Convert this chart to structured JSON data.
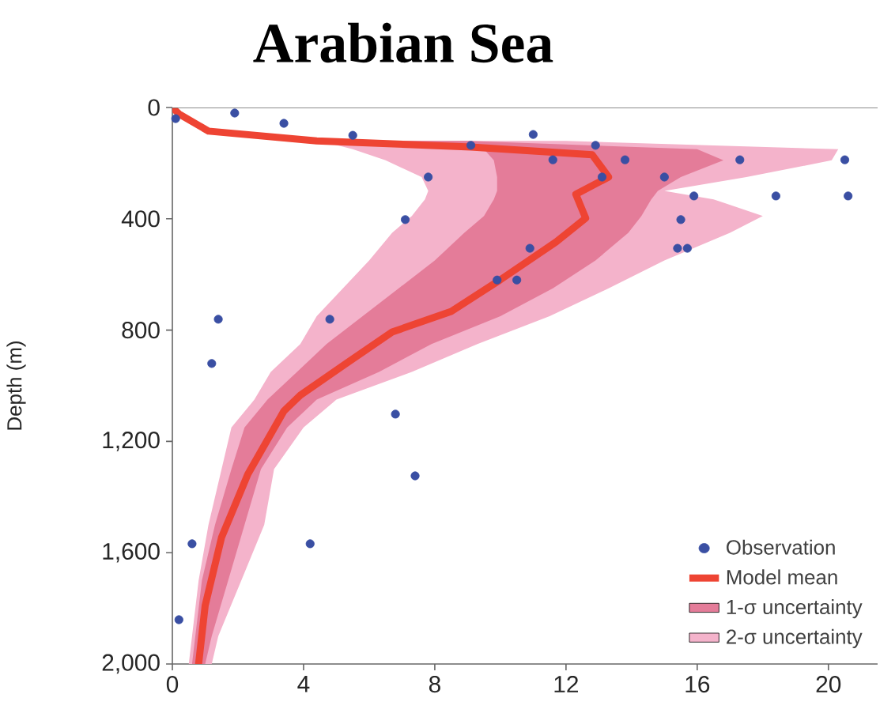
{
  "chart_data": {
    "type": "line",
    "orientation": "horizontal",
    "title": "Arabian Sea",
    "ylabel": "Depth (m)",
    "xlim": [
      0,
      21.5
    ],
    "ylim": [
      2000,
      0
    ],
    "xticks": [
      0,
      4,
      8,
      12,
      16,
      20
    ],
    "yticks": [
      0,
      400,
      800,
      {
        "value": 1200,
        "label": "1,200"
      },
      {
        "value": 1600,
        "label": "1,600"
      },
      {
        "value": 2000,
        "label": "2,000"
      }
    ],
    "legend": "bottom right",
    "grid": false,
    "series": [
      {
        "name": "Observation",
        "type": "scatter",
        "color": "#3a4fa3",
        "values": [
          0.1,
          1.9,
          3.4,
          5.5,
          9.1,
          11.0,
          11.6,
          12.9,
          13.1,
          13.8,
          7.8,
          7.1,
          10.9,
          9.9,
          10.5,
          1.4,
          4.8,
          1.2,
          6.8,
          7.4,
          0.6,
          4.2,
          0.2,
          15.0,
          15.9,
          17.3,
          18.4,
          20.5,
          20.6,
          15.5,
          15.4,
          15.7
        ],
        "x": [
          40,
          20,
          57,
          100,
          136,
          97,
          188,
          136,
          250,
          188,
          250,
          403,
          506,
          620,
          620,
          761,
          761,
          920,
          1102,
          1324,
          1568,
          1568,
          1841,
          250,
          318,
          188,
          318,
          188,
          318,
          403,
          506,
          506
        ]
      },
      {
        "name": "Model mean",
        "color": "#ee4433",
        "values": [
          0,
          0.2,
          1.1,
          4.4,
          9.1,
          12.8,
          13.3,
          12.3,
          12.6,
          11.7,
          10.0,
          8.5,
          6.7,
          5.3,
          3.9,
          3.4,
          2.3,
          1.5,
          1.0,
          0.8
        ],
        "x": [
          0,
          23,
          85,
          120,
          142,
          170,
          250,
          312,
          398,
          483,
          619,
          733,
          807,
          920,
          1034,
          1091,
          1318,
          1545,
          1790,
          2000
        ]
      },
      {
        "name": "1-σ uncertainty",
        "type": "area",
        "color": "#e47c99",
        "x": [
          120,
          150,
          190,
          250,
          300,
          330,
          390,
          450,
          550,
          650,
          750,
          850,
          950,
          1050,
          1150,
          1300,
          1500,
          1700,
          1900,
          2000,
          2000,
          1900,
          1700,
          1500,
          1300,
          1150,
          1050,
          950,
          850,
          750,
          650,
          550,
          450,
          390,
          330,
          300,
          250,
          190,
          150,
          120
        ],
        "values": [
          6,
          9.5,
          9.8,
          9.9,
          9.9,
          9.8,
          9.5,
          8.9,
          8.0,
          6.9,
          5.8,
          4.7,
          3.8,
          2.9,
          2.2,
          1.8,
          1.3,
          0.9,
          0.7,
          0.6,
          1.0,
          1.2,
          1.7,
          2.2,
          2.7,
          3.5,
          4.4,
          6.3,
          7.9,
          10.0,
          11.6,
          12.9,
          13.9,
          14.3,
          14.6,
          14.8,
          15.5,
          16.8,
          16.0,
          9
        ]
      },
      {
        "name": "2-σ uncertainty",
        "type": "area",
        "color": "#f4b3cb",
        "x": [
          120,
          150,
          190,
          250,
          300,
          330,
          390,
          450,
          550,
          650,
          750,
          850,
          950,
          1050,
          1150,
          1300,
          1500,
          1700,
          1900,
          2000,
          2000,
          1900,
          1700,
          1500,
          1300,
          1150,
          1050,
          950,
          850,
          750,
          650,
          550,
          450,
          390,
          330,
          300,
          250,
          190,
          150,
          120
        ],
        "values": [
          4.5,
          5.5,
          6.5,
          7.6,
          7.8,
          7.7,
          7.3,
          6.7,
          6.0,
          5.2,
          4.4,
          3.9,
          3.0,
          2.5,
          1.8,
          1.5,
          1.1,
          0.8,
          0.6,
          0.5,
          1.2,
          1.4,
          2.1,
          2.8,
          3.1,
          4.0,
          5.0,
          7.3,
          9.3,
          11.5,
          13.3,
          15.0,
          17.0,
          18.0,
          16.5,
          15.0,
          17.5,
          20.1,
          20.3,
          12
        ]
      }
    ]
  }
}
